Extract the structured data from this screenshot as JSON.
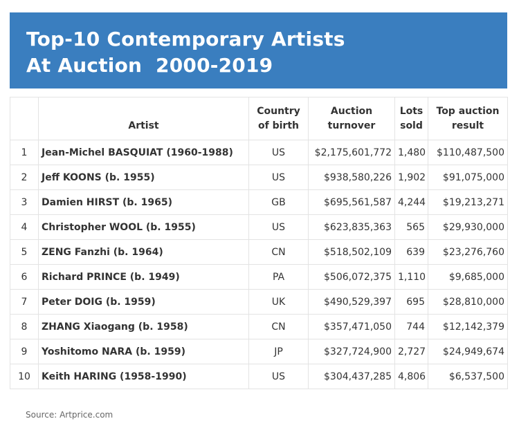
{
  "header": {
    "title_line1": "Top-10 Contemporary Artists",
    "title_line2": "At Auction  2000-2019"
  },
  "table": {
    "columns": {
      "rank": "",
      "artist": "Artist",
      "country": "Country of birth",
      "turnover": "Auction turnover",
      "lots": "Lots sold",
      "top": "Top auction result"
    },
    "rows": [
      {
        "rank": "1",
        "artist": "Jean-Michel BASQUIAT (1960-1988)",
        "country": "US",
        "turnover": "$2,175,601,772",
        "lots": "1,480",
        "top": "$110,487,500"
      },
      {
        "rank": "2",
        "artist": "Jeff KOONS (b. 1955)",
        "country": "US",
        "turnover": "$938,580,226",
        "lots": "1,902",
        "top": "$91,075,000"
      },
      {
        "rank": "3",
        "artist": "Damien HIRST (b. 1965)",
        "country": "GB",
        "turnover": "$695,561,587",
        "lots": "4,244",
        "top": "$19,213,271"
      },
      {
        "rank": "4",
        "artist": "Christopher WOOL (b. 1955)",
        "country": "US",
        "turnover": "$623,835,363",
        "lots": "565",
        "top": "$29,930,000"
      },
      {
        "rank": "5",
        "artist": "ZENG Fanzhi (b. 1964)",
        "country": "CN",
        "turnover": "$518,502,109",
        "lots": "639",
        "top": "$23,276,760"
      },
      {
        "rank": "6",
        "artist": "Richard PRINCE (b. 1949)",
        "country": "PA",
        "turnover": "$506,072,375",
        "lots": "1,110",
        "top": "$9,685,000"
      },
      {
        "rank": "7",
        "artist": "Peter DOIG (b. 1959)",
        "country": "UK",
        "turnover": "$490,529,397",
        "lots": "695",
        "top": "$28,810,000"
      },
      {
        "rank": "8",
        "artist": "ZHANG Xiaogang (b. 1958)",
        "country": "CN",
        "turnover": "$357,471,050",
        "lots": "744",
        "top": "$12,142,379"
      },
      {
        "rank": "9",
        "artist": "Yoshitomo NARA (b. 1959)",
        "country": "JP",
        "turnover": "$327,724,900",
        "lots": "2,727",
        "top": "$24,949,674"
      },
      {
        "rank": "10",
        "artist": "Keith HARING (1958-1990)",
        "country": "US",
        "turnover": "$304,437,285",
        "lots": "4,806",
        "top": "$6,537,500"
      }
    ]
  },
  "footer": {
    "source": "Source: Artprice.com"
  },
  "colors": {
    "banner": "#3a7ebf",
    "link": "#3a6ea5"
  }
}
